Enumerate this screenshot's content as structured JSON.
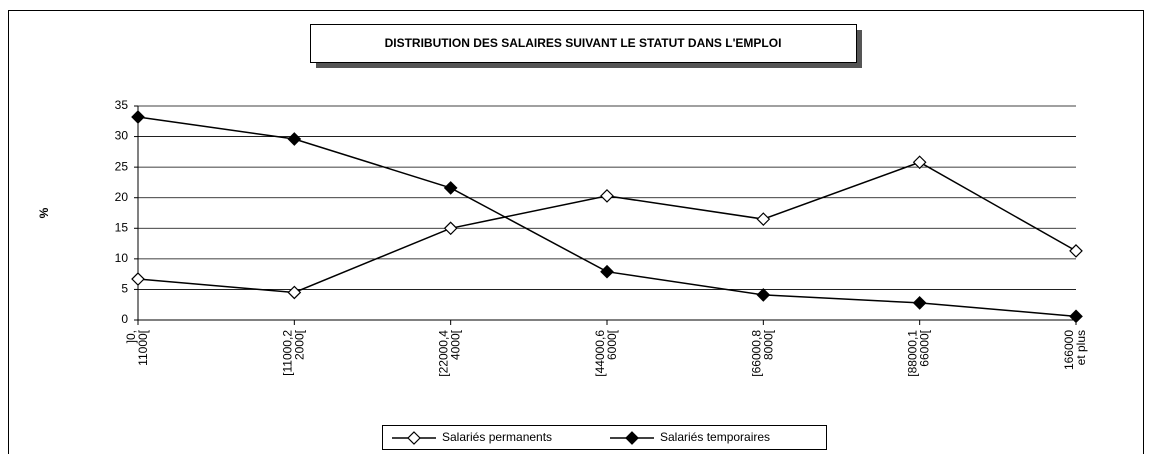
{
  "chart_data": {
    "type": "line",
    "title": "DISTRIBUTION  DES SALAIRES SUIVANT LE STATUT DANS L'EMPLOI",
    "y_label": "%",
    "categories": [
      "]0,\n11000[",
      "[11000,2\n2000[",
      "[22000,4\n4000[",
      "[44000,6\n6000[",
      "[66000,8\n8000[",
      "[88000,1\n66000[",
      "166000\net plus"
    ],
    "series": [
      {
        "name": "Salariés permanents",
        "color": "#000000",
        "marker_fill": "#ffffff",
        "values": [
          6.7,
          4.5,
          15,
          20.3,
          16.5,
          25.8,
          11.3
        ]
      },
      {
        "name": "Salariés temporaires",
        "color": "#000000",
        "marker_fill": "#000000",
        "values": [
          33.2,
          29.6,
          21.6,
          7.9,
          4.1,
          2.8,
          0.6
        ]
      }
    ],
    "ylim": [
      0,
      35
    ],
    "yticks": [
      0,
      5,
      10,
      15,
      20,
      25,
      30,
      35
    ],
    "grid": true,
    "legend": "bottom"
  }
}
